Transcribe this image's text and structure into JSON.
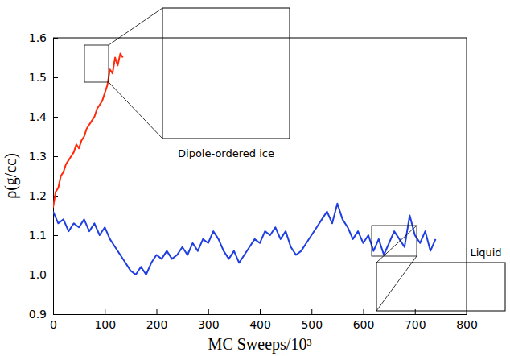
{
  "chart_data": {
    "type": "line",
    "x_label": "MC Sweeps/10³",
    "y_label": "ρ(g/cc)",
    "xlim": [
      0,
      800
    ],
    "xticks": [
      0,
      100,
      200,
      300,
      400,
      500,
      600,
      700,
      800
    ],
    "ylim": [
      0.9,
      1.6
    ],
    "yticks": [
      0.9,
      {
        "value": 1,
        "label": "1.0"
      },
      1.1,
      1.2,
      1.3,
      1.4,
      1.5,
      1.6
    ],
    "grid": false,
    "annotations": [
      "Dipole-ordered ice",
      "Liquid"
    ],
    "series": [
      {
        "color": "#ff2a0a",
        "x": [
          0,
          5,
          10,
          15,
          20,
          25,
          30,
          35,
          40,
          45,
          50,
          55,
          60,
          65,
          70,
          75,
          80,
          85,
          90,
          95,
          100,
          105,
          110,
          115,
          120,
          125,
          130,
          135
        ],
        "values": [
          1.17,
          1.21,
          1.22,
          1.25,
          1.26,
          1.28,
          1.29,
          1.3,
          1.31,
          1.33,
          1.32,
          1.34,
          1.35,
          1.37,
          1.38,
          1.39,
          1.4,
          1.42,
          1.43,
          1.44,
          1.46,
          1.48,
          1.52,
          1.51,
          1.55,
          1.53,
          1.56,
          1.55
        ]
      },
      {
        "color": "#1f3fe0",
        "x": [
          0,
          10,
          20,
          30,
          40,
          50,
          60,
          70,
          80,
          90,
          100,
          110,
          120,
          130,
          140,
          150,
          160,
          170,
          180,
          190,
          200,
          210,
          220,
          230,
          240,
          250,
          260,
          270,
          280,
          290,
          300,
          310,
          320,
          330,
          340,
          350,
          360,
          370,
          380,
          390,
          400,
          410,
          420,
          430,
          440,
          450,
          460,
          470,
          480,
          490,
          500,
          510,
          520,
          530,
          540,
          550,
          560,
          570,
          580,
          590,
          600,
          610,
          620,
          630,
          640,
          650,
          660,
          670,
          680,
          690,
          700,
          710,
          720,
          730,
          740
        ],
        "values": [
          1.16,
          1.13,
          1.14,
          1.11,
          1.13,
          1.12,
          1.14,
          1.11,
          1.13,
          1.1,
          1.12,
          1.09,
          1.07,
          1.05,
          1.03,
          1.01,
          1.0,
          1.02,
          1.0,
          1.03,
          1.05,
          1.04,
          1.06,
          1.04,
          1.05,
          1.07,
          1.05,
          1.08,
          1.06,
          1.09,
          1.08,
          1.11,
          1.09,
          1.06,
          1.04,
          1.06,
          1.03,
          1.05,
          1.07,
          1.09,
          1.08,
          1.11,
          1.1,
          1.12,
          1.09,
          1.11,
          1.07,
          1.05,
          1.06,
          1.08,
          1.1,
          1.12,
          1.14,
          1.16,
          1.13,
          1.18,
          1.14,
          1.12,
          1.09,
          1.11,
          1.08,
          1.1,
          1.06,
          1.09,
          1.05,
          1.08,
          1.11,
          1.09,
          1.07,
          1.15,
          1.1,
          1.08,
          1.11,
          1.06,
          1.09
        ]
      }
    ]
  }
}
